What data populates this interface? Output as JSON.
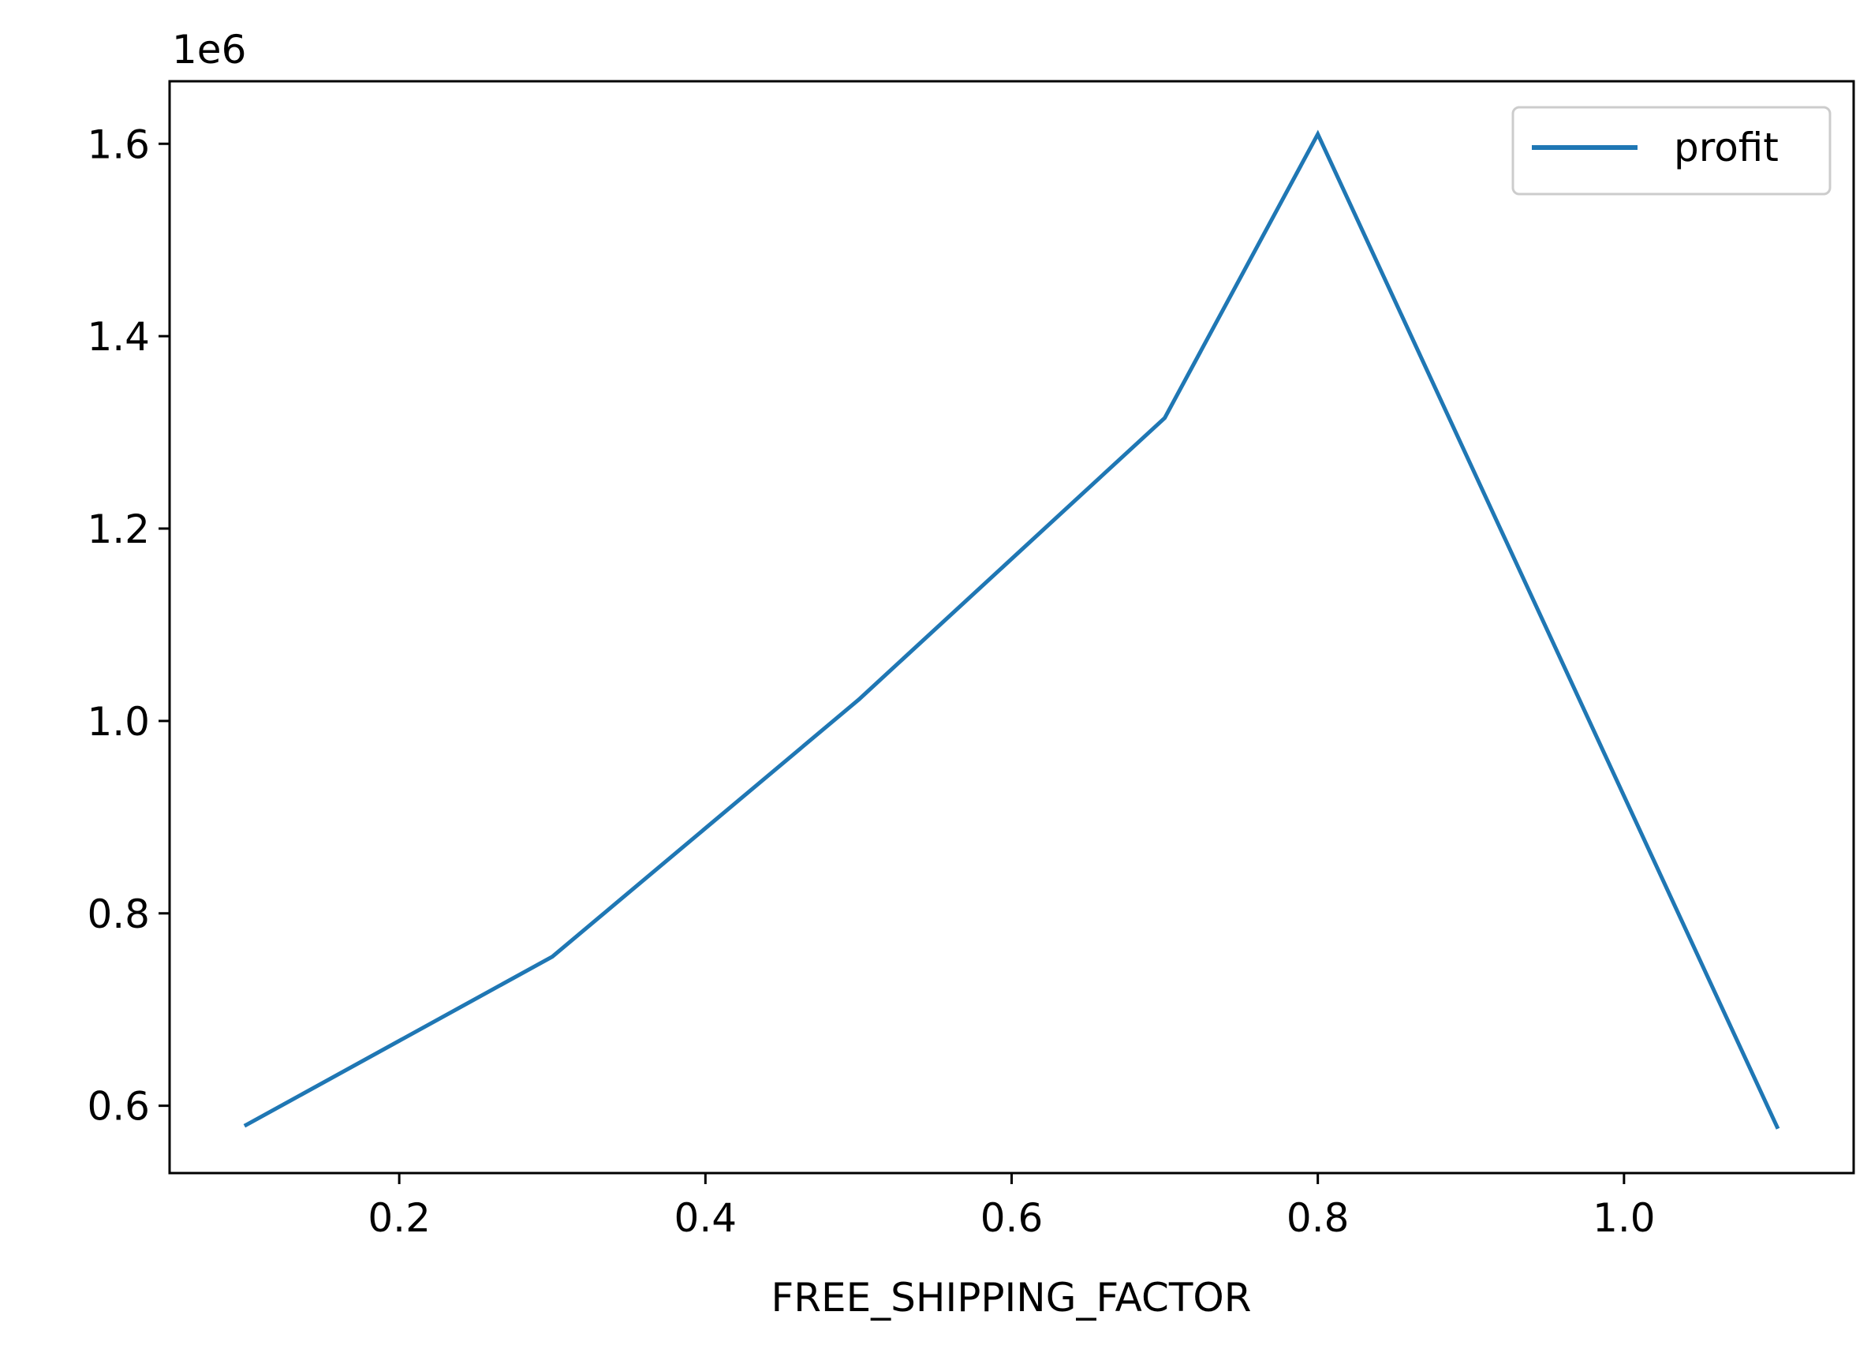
{
  "chart_data": {
    "type": "line",
    "title": "",
    "xlabel": "FREE_SHIPPING_FACTOR",
    "ylabel": "",
    "y_offset_label": "1e6",
    "x": [
      0.1,
      0.3,
      0.5,
      0.7,
      0.8,
      1.1
    ],
    "series": [
      {
        "name": "profit",
        "color": "#1f77b4",
        "values": [
          0.58,
          0.755,
          1.022,
          1.315,
          1.61,
          0.578
        ]
      }
    ],
    "xlim": [
      0.05,
      1.15
    ],
    "ylim": [
      0.53,
      1.665
    ],
    "xticks": [
      0.2,
      0.4,
      0.6,
      0.8,
      1.0
    ],
    "xtick_labels": [
      "0.2",
      "0.4",
      "0.6",
      "0.8",
      "1.0"
    ],
    "yticks": [
      0.6,
      0.8,
      1.0,
      1.2,
      1.4,
      1.6
    ],
    "ytick_labels": [
      "0.6",
      "0.8",
      "1.0",
      "1.2",
      "1.4",
      "1.6"
    ],
    "grid": false,
    "legend_position": "top-right"
  }
}
